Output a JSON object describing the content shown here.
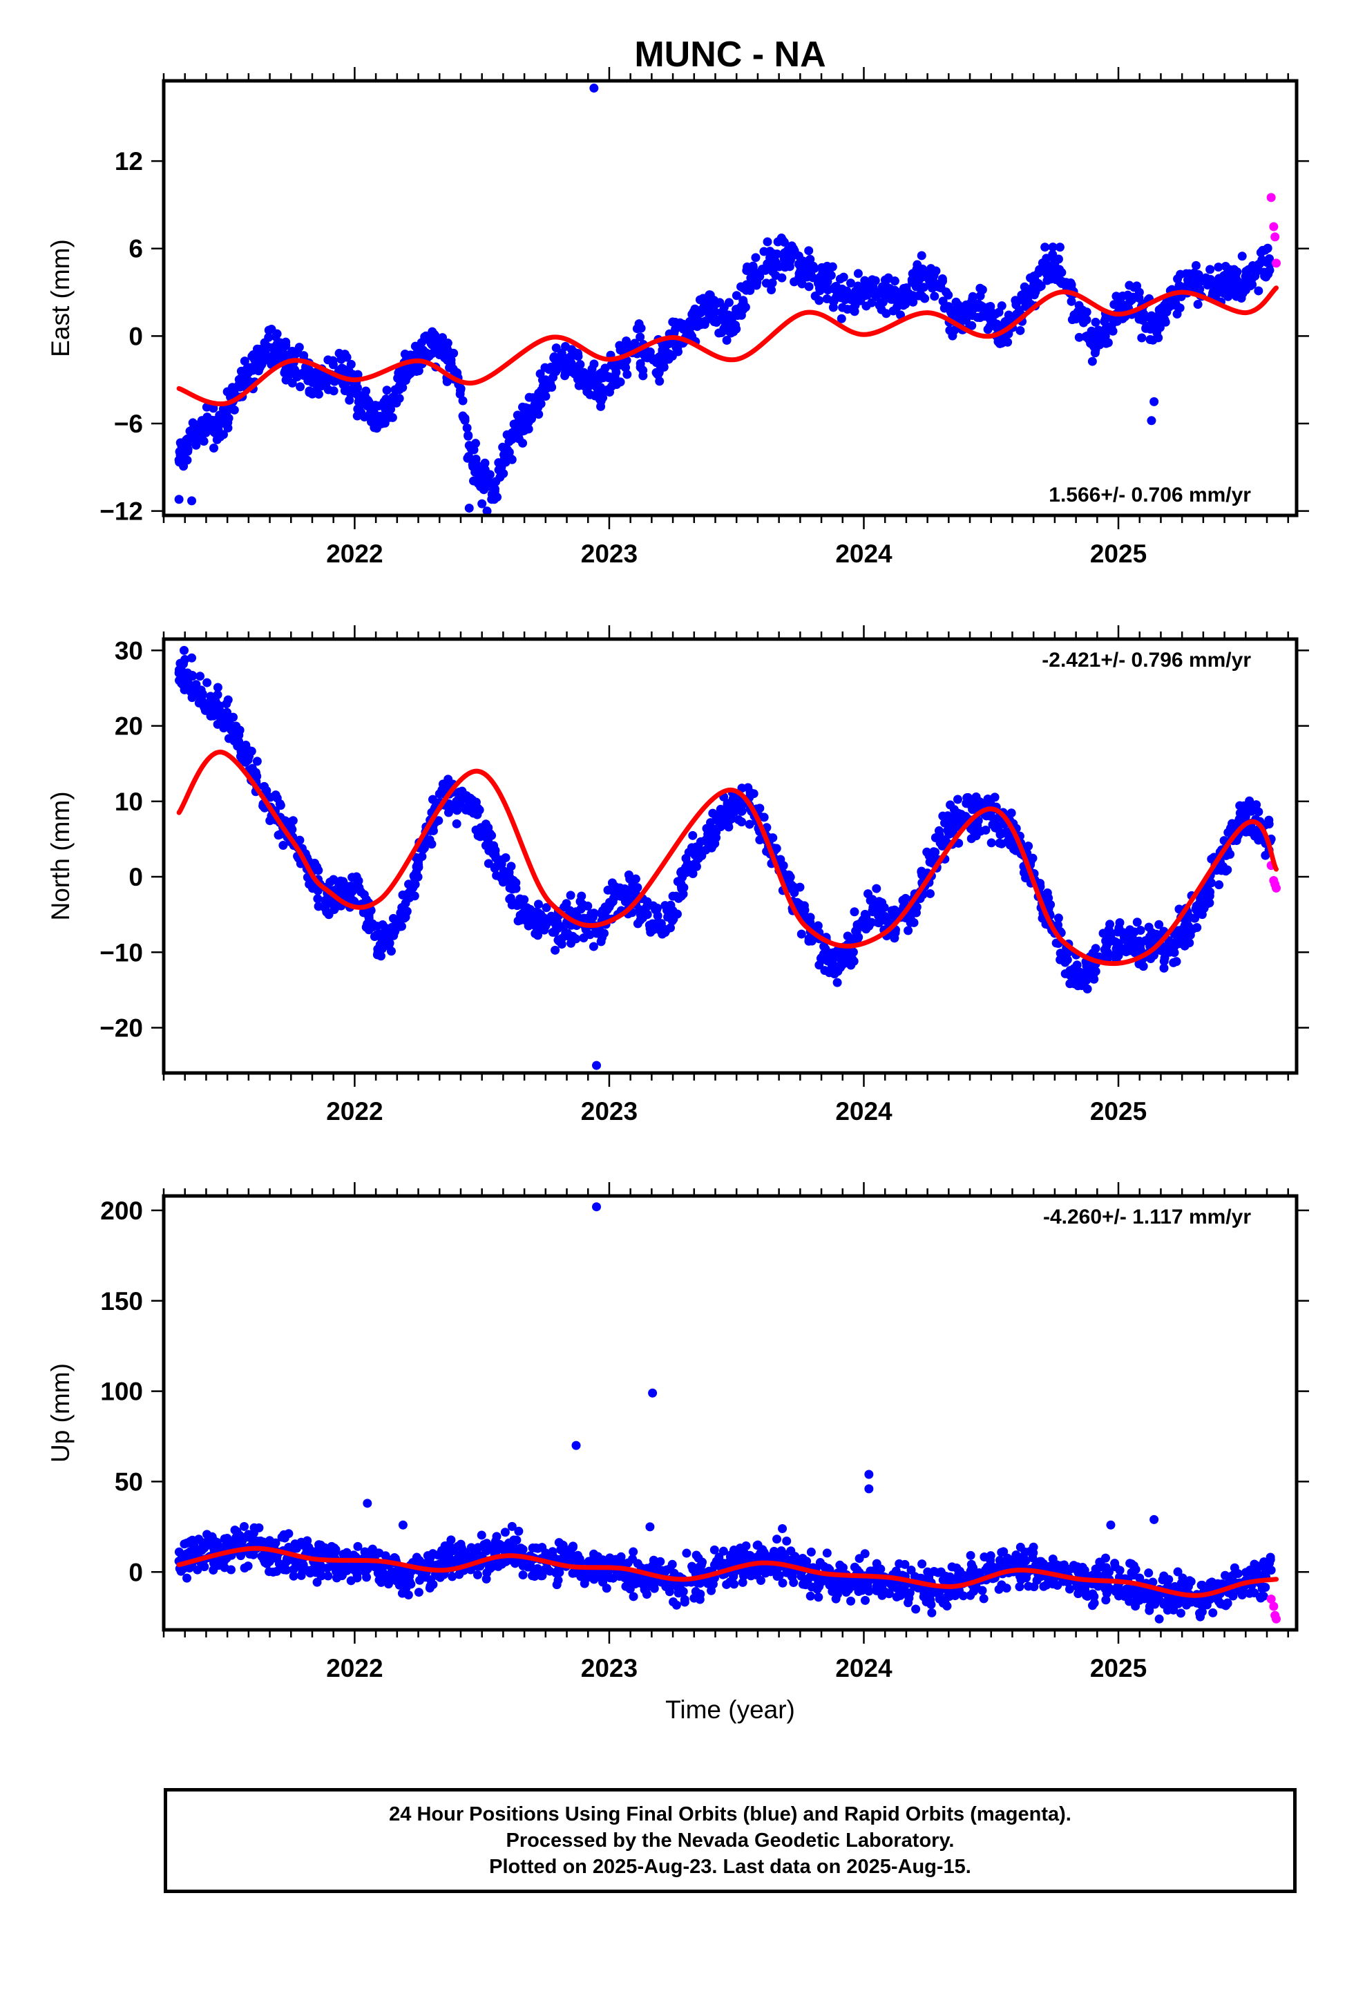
{
  "page": {
    "title": "MUNC - NA",
    "footer_lines": [
      "24 Hour Positions Using Final Orbits (blue) and Rapid Orbits (magenta).",
      "Processed by the Nevada Geodetic Laboratory.",
      "Plotted on 2025-Aug-23. Last data on 2025-Aug-15."
    ]
  },
  "colors": {
    "final_orbits": "#0000ff",
    "rapid_orbits": "#ff00ff",
    "model_fit": "#ff0000"
  },
  "chart_data": [
    {
      "type": "scatter",
      "title": "MUNC - NA",
      "ylabel": "East (mm)",
      "xlabel": "",
      "xlim": [
        2021.25,
        2025.7
      ],
      "ylim": [
        -12.3,
        17.5
      ],
      "yticks": [
        -12,
        -6,
        0,
        6,
        12
      ],
      "xticks": [
        2022,
        2023,
        2024,
        2025
      ],
      "rate_text": "1.566+/- 0.706 mm/yr",
      "rate_position": "bottom-right",
      "grid": false,
      "series": [
        {
          "kind": "final_orbits",
          "x": [
            2021.31,
            2021.35,
            2021.4,
            2021.45,
            2021.5,
            2021.55,
            2021.6,
            2021.65,
            2021.7,
            2021.75,
            2021.8,
            2021.85,
            2021.9,
            2021.95,
            2022.0,
            2022.05,
            2022.1,
            2022.15,
            2022.2,
            2022.25,
            2022.3,
            2022.35,
            2022.4,
            2022.45,
            2022.5,
            2022.55,
            2022.6,
            2022.65,
            2022.7,
            2022.75,
            2022.8,
            2022.85,
            2022.9,
            2022.95,
            2023.0,
            2023.05,
            2023.1,
            2023.15,
            2023.2,
            2023.25,
            2023.3,
            2023.35,
            2023.4,
            2023.45,
            2023.5,
            2023.55,
            2023.6,
            2023.65,
            2023.7,
            2023.75,
            2023.8,
            2023.85,
            2023.9,
            2023.95,
            2024.0,
            2024.05,
            2024.1,
            2024.15,
            2024.2,
            2024.25,
            2024.3,
            2024.35,
            2024.4,
            2024.45,
            2024.5,
            2024.55,
            2024.6,
            2024.65,
            2024.7,
            2024.75,
            2024.8,
            2024.85,
            2024.9,
            2024.95,
            2025.0,
            2025.05,
            2025.1,
            2025.15,
            2025.2,
            2025.25,
            2025.3,
            2025.35,
            2025.4,
            2025.45,
            2025.5,
            2025.55,
            2025.6,
            2022.94,
            2021.31,
            2021.36,
            2022.45,
            2022.5,
            2022.52,
            2025.13,
            2025.14
          ],
          "y": [
            -8.5,
            -7.2,
            -6.1,
            -6.5,
            -5.0,
            -3.5,
            -2.3,
            -1.0,
            -0.8,
            -2.2,
            -2.5,
            -3.1,
            -2.6,
            -2.2,
            -3.4,
            -4.8,
            -5.5,
            -4.2,
            -2.0,
            -1.5,
            -0.5,
            -1.2,
            -2.5,
            -7.5,
            -9.8,
            -10.5,
            -7.8,
            -6.0,
            -5.2,
            -3.0,
            -1.5,
            -2.0,
            -2.5,
            -3.5,
            -2.8,
            -1.8,
            -0.5,
            -1.5,
            -2.0,
            -0.3,
            0.5,
            1.5,
            2.0,
            0.5,
            1.5,
            3.5,
            4.5,
            5.0,
            5.5,
            4.8,
            4.0,
            3.5,
            3.0,
            2.5,
            3.2,
            2.8,
            3.0,
            2.5,
            3.8,
            4.2,
            3.5,
            1.0,
            1.5,
            2.2,
            1.0,
            0.5,
            1.5,
            3.0,
            4.5,
            5.0,
            3.5,
            1.5,
            -0.5,
            0.5,
            2.0,
            2.5,
            1.5,
            0.5,
            2.0,
            3.0,
            4.0,
            3.5,
            3.5,
            4.0,
            3.8,
            4.5,
            5.0,
            17.0,
            -11.2,
            -11.3,
            -11.8,
            -11.5,
            -12.0,
            -5.8,
            -4.5
          ]
        },
        {
          "kind": "rapid_orbits",
          "x": [
            2025.6,
            2025.61,
            2025.615,
            2025.62
          ],
          "y": [
            9.5,
            7.5,
            6.8,
            5.0
          ]
        },
        {
          "kind": "model_fit",
          "x": [
            2021.31,
            2021.5,
            2021.75,
            2022.0,
            2022.25,
            2022.47,
            2022.77,
            2023.0,
            2023.25,
            2023.5,
            2023.77,
            2024.0,
            2024.25,
            2024.5,
            2024.77,
            2025.0,
            2025.25,
            2025.5,
            2025.62
          ],
          "y": [
            -3.6,
            -4.6,
            -1.7,
            -3.0,
            -1.7,
            -3.2,
            -0.1,
            -1.6,
            -0.1,
            -1.6,
            1.6,
            0.1,
            1.6,
            0.0,
            3.0,
            1.5,
            3.0,
            1.6,
            3.3
          ]
        }
      ]
    },
    {
      "type": "scatter",
      "ylabel": "North (mm)",
      "xlabel": "",
      "xlim": [
        2021.25,
        2025.7
      ],
      "ylim": [
        -26,
        31.5
      ],
      "yticks": [
        -20,
        -10,
        0,
        10,
        20,
        30
      ],
      "xticks": [
        2022,
        2023,
        2024,
        2025
      ],
      "rate_text": "-2.421+/- 0.796 mm/yr",
      "rate_position": "top-right",
      "grid": false,
      "series": [
        {
          "kind": "final_orbits",
          "x": [
            2021.31,
            2021.35,
            2021.4,
            2021.45,
            2021.5,
            2021.55,
            2021.6,
            2021.65,
            2021.7,
            2021.75,
            2021.8,
            2021.85,
            2021.9,
            2021.95,
            2022.0,
            2022.05,
            2022.1,
            2022.15,
            2022.2,
            2022.25,
            2022.3,
            2022.35,
            2022.4,
            2022.45,
            2022.5,
            2022.55,
            2022.6,
            2022.65,
            2022.7,
            2022.75,
            2022.8,
            2022.85,
            2022.9,
            2022.95,
            2023.0,
            2023.05,
            2023.1,
            2023.15,
            2023.2,
            2023.25,
            2023.3,
            2023.35,
            2023.4,
            2023.45,
            2023.5,
            2023.55,
            2023.6,
            2023.65,
            2023.7,
            2023.75,
            2023.8,
            2023.85,
            2023.9,
            2023.95,
            2024.0,
            2024.05,
            2024.1,
            2024.15,
            2024.2,
            2024.25,
            2024.3,
            2024.35,
            2024.4,
            2024.45,
            2024.5,
            2024.55,
            2024.6,
            2024.65,
            2024.7,
            2024.75,
            2024.8,
            2024.85,
            2024.9,
            2024.95,
            2025.0,
            2025.05,
            2025.1,
            2025.15,
            2025.2,
            2025.25,
            2025.3,
            2025.35,
            2025.4,
            2025.45,
            2025.5,
            2025.55,
            2025.6,
            2022.95,
            2021.33,
            2021.36
          ],
          "y": [
            27.0,
            26.5,
            24.0,
            22.5,
            21.0,
            17.5,
            14.0,
            10.5,
            7.5,
            5.5,
            2.0,
            -1.0,
            -2.5,
            -1.5,
            -1.5,
            -4.0,
            -9.0,
            -7.0,
            -3.5,
            2.0,
            7.0,
            11.0,
            10.0,
            9.0,
            6.5,
            3.0,
            -0.5,
            -3.5,
            -5.5,
            -6.5,
            -6.8,
            -6.0,
            -5.5,
            -7.5,
            -4.0,
            -2.0,
            -3.0,
            -5.0,
            -6.5,
            -4.5,
            1.0,
            3.5,
            5.0,
            8.0,
            10.0,
            9.5,
            6.0,
            3.5,
            -0.5,
            -4.5,
            -7.5,
            -10.5,
            -12.0,
            -9.0,
            -6.0,
            -4.0,
            -6.5,
            -5.0,
            -3.5,
            0.5,
            4.5,
            7.0,
            8.0,
            8.5,
            8.0,
            7.0,
            5.0,
            1.5,
            -3.5,
            -7.5,
            -11.0,
            -13.5,
            -12.0,
            -8.5,
            -9.0,
            -8.5,
            -10.5,
            -8.0,
            -10.0,
            -7.0,
            -5.5,
            -2.0,
            2.0,
            6.0,
            8.0,
            6.0,
            5.0,
            -25.0,
            30.0,
            29.0
          ]
        },
        {
          "kind": "rapid_orbits",
          "x": [
            2025.6,
            2025.61,
            2025.615,
            2025.62
          ],
          "y": [
            1.5,
            -0.5,
            -1.0,
            -1.5
          ]
        },
        {
          "kind": "model_fit",
          "x": [
            2021.31,
            2021.48,
            2021.75,
            2021.88,
            2022.1,
            2022.48,
            2022.77,
            2023.05,
            2023.48,
            2023.77,
            2024.08,
            2024.5,
            2024.78,
            2025.12,
            2025.5,
            2025.62
          ],
          "y": [
            8.5,
            16.5,
            5.0,
            -1.5,
            -3.0,
            14.0,
            -3.5,
            -5.0,
            11.5,
            -6.5,
            -7.5,
            9.0,
            -8.5,
            -10.0,
            7.0,
            1.0
          ]
        }
      ]
    },
    {
      "type": "scatter",
      "ylabel": "Up (mm)",
      "xlabel": "Time (year)",
      "xlim": [
        2021.25,
        2025.7
      ],
      "ylim": [
        -32,
        208
      ],
      "yticks": [
        0,
        50,
        100,
        150,
        200
      ],
      "xticks": [
        2022,
        2023,
        2024,
        2025
      ],
      "rate_text": "-4.260+/- 1.117 mm/yr",
      "rate_position": "top-right",
      "grid": false,
      "series": [
        {
          "kind": "final_orbits",
          "x": [
            2021.31,
            2021.35,
            2021.4,
            2021.45,
            2021.5,
            2021.55,
            2021.6,
            2021.65,
            2021.7,
            2021.75,
            2021.8,
            2021.85,
            2021.9,
            2021.95,
            2022.0,
            2022.05,
            2022.1,
            2022.15,
            2022.2,
            2022.25,
            2022.3,
            2022.35,
            2022.4,
            2022.45,
            2022.5,
            2022.55,
            2022.6,
            2022.65,
            2022.7,
            2022.75,
            2022.8,
            2022.85,
            2022.9,
            2022.95,
            2023.0,
            2023.05,
            2023.1,
            2023.15,
            2023.2,
            2023.25,
            2023.3,
            2023.35,
            2023.4,
            2023.45,
            2023.5,
            2023.55,
            2023.6,
            2023.65,
            2023.7,
            2023.75,
            2023.8,
            2023.85,
            2023.9,
            2023.95,
            2024.0,
            2024.05,
            2024.1,
            2024.15,
            2024.2,
            2024.25,
            2024.3,
            2024.35,
            2024.4,
            2024.45,
            2024.5,
            2024.55,
            2024.6,
            2024.65,
            2024.7,
            2024.75,
            2024.8,
            2024.85,
            2024.9,
            2024.95,
            2025.0,
            2025.05,
            2025.1,
            2025.15,
            2025.2,
            2025.25,
            2025.3,
            2025.35,
            2025.4,
            2025.45,
            2025.5,
            2025.55,
            2025.6,
            2022.95,
            2023.17,
            2022.87,
            2024.02,
            2024.02,
            2022.05,
            2022.19,
            2023.16,
            2024.97,
            2025.14,
            2023.68
          ],
          "y": [
            6,
            9,
            12,
            10,
            14,
            15,
            16,
            13,
            11,
            9,
            8,
            6,
            7,
            6,
            5,
            3,
            2,
            0,
            -1,
            1,
            3,
            5,
            7,
            6,
            9,
            10,
            11,
            10,
            8,
            6,
            4,
            5,
            3,
            2,
            1,
            0,
            -2,
            -4,
            -3,
            -6,
            -5,
            -3,
            -1,
            2,
            4,
            6,
            7,
            5,
            3,
            0,
            -2,
            -3,
            -4,
            -5,
            -4,
            -5,
            -6,
            -7,
            -8,
            -9,
            -10,
            -6,
            -4,
            -2,
            0,
            2,
            3,
            1,
            -1,
            -3,
            -2,
            -4,
            -6,
            -5,
            -7,
            -8,
            -12,
            -13,
            -14,
            -13,
            -15,
            -14,
            -12,
            -9,
            -5,
            -2,
            1,
            202,
            99,
            70,
            54,
            46,
            38,
            26,
            25,
            26,
            29,
            24
          ]
        },
        {
          "kind": "rapid_orbits",
          "x": [
            2025.6,
            2025.61,
            2025.615,
            2025.62
          ],
          "y": [
            -15,
            -19,
            -24,
            -26
          ]
        },
        {
          "kind": "model_fit",
          "x": [
            2021.31,
            2021.6,
            2021.85,
            2022.1,
            2022.35,
            2022.6,
            2022.85,
            2023.05,
            2023.3,
            2023.6,
            2023.85,
            2024.1,
            2024.35,
            2024.6,
            2024.85,
            2025.05,
            2025.3,
            2025.5,
            2025.62
          ],
          "y": [
            4,
            13,
            7,
            6,
            1,
            9,
            3,
            2,
            -4,
            5,
            -1,
            -3,
            -8,
            1,
            -4,
            -6,
            -13,
            -6,
            -4
          ]
        }
      ]
    }
  ]
}
